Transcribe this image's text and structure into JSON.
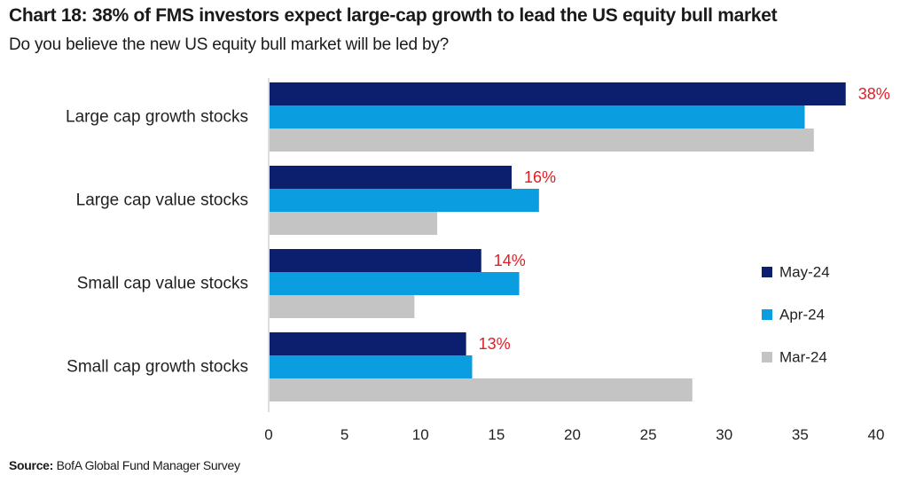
{
  "header": {
    "title": "Chart 18: 38% of FMS investors expect large-cap growth to lead the US equity bull market",
    "subtitle": "Do you believe the new US equity bull market will be led by?"
  },
  "footer": {
    "source_label": "Source:",
    "source_text": "BofA Global Fund Manager Survey"
  },
  "chart_data": {
    "type": "bar",
    "orientation": "horizontal",
    "title": "Chart 18: 38% of FMS investors expect large-cap growth to lead the US equity bull market",
    "subtitle": "Do you believe the new US equity bull market will be led by?",
    "categories": [
      "Large cap growth stocks",
      "Large cap value stocks",
      "Small cap value stocks",
      "Small cap growth stocks"
    ],
    "series": [
      {
        "name": "May-24",
        "color": "#0b1f6e",
        "values": [
          38,
          16,
          14,
          13
        ]
      },
      {
        "name": "Apr-24",
        "color": "#0a9ee0",
        "values": [
          35.3,
          17.8,
          16.5,
          13.4
        ]
      },
      {
        "name": "Mar-24",
        "color": "#c4c4c4",
        "values": [
          35.9,
          11.1,
          9.6,
          27.9
        ]
      }
    ],
    "data_labels": [
      "38%",
      "16%",
      "14%",
      "13%"
    ],
    "data_label_color": "#e31c23",
    "xlim": [
      0,
      40
    ],
    "xticks": [
      0,
      5,
      10,
      15,
      20,
      25,
      30,
      35,
      40
    ],
    "grid": false,
    "legend_position": "right"
  }
}
